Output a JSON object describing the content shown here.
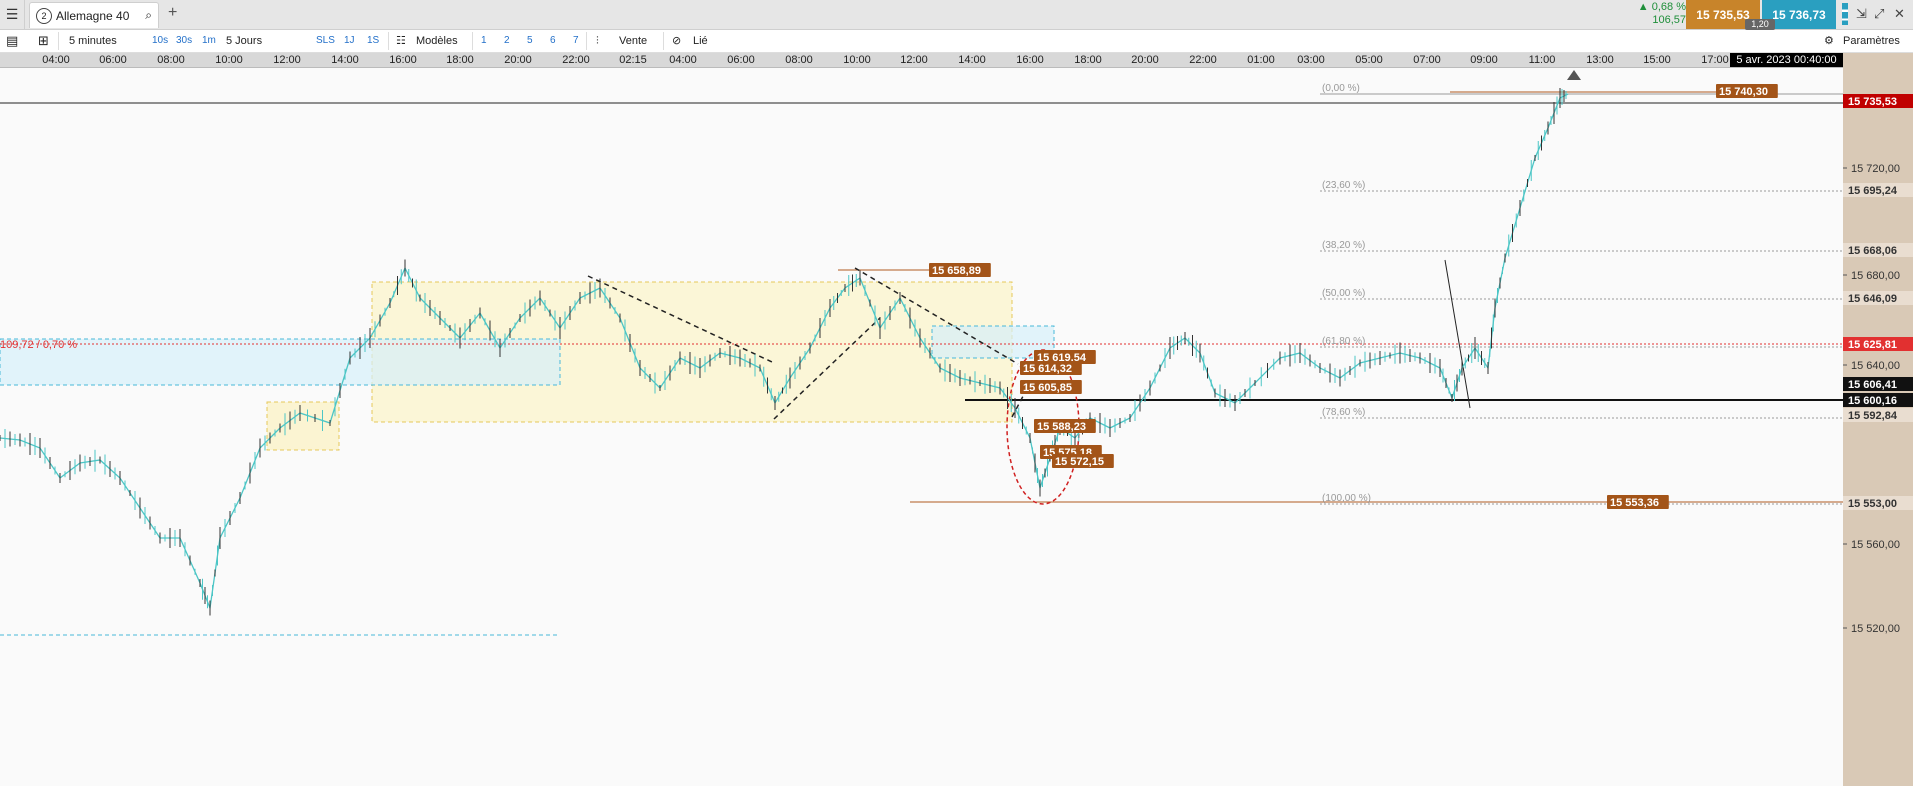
{
  "tabbar": {
    "menu_icon": "hamburger-icon",
    "tab_number": "2",
    "tab_title": "Allemagne 40",
    "plus": "+",
    "change_pct": "0,68 %",
    "change_abs": "106,57",
    "bid": "15 735,53",
    "ask": "15 736,73",
    "spread": "1,20",
    "controls": [
      "⇲",
      "⤢",
      "✕"
    ]
  },
  "toolbar": {
    "interval": "5 minutes",
    "btn_10s": "10s",
    "btn_30s": "30s",
    "btn_1m": "1m",
    "period": "5 Jours",
    "btn_sls": "SLS",
    "btn_1j": "1J",
    "btn_1s": "1S",
    "models": "Modèles",
    "n1": "1",
    "n2": "2",
    "n3": "5",
    "n4": "6",
    "n5": "7",
    "vente": "Vente",
    "lie": "Lié",
    "params": "Paramètres"
  },
  "time_axis": {
    "labels": [
      "04:00",
      "06:00",
      "08:00",
      "10:00",
      "12:00",
      "14:00",
      "16:00",
      "18:00",
      "20:00",
      "22:00",
      "02:15",
      "04:00",
      "06:00",
      "08:00",
      "10:00",
      "12:00",
      "14:00",
      "16:00",
      "18:00",
      "20:00",
      "22:00",
      "01:00",
      "03:00",
      "05:00",
      "07:00",
      "09:00",
      "11:00",
      "13:00",
      "15:00",
      "17:00"
    ],
    "current_date": "5 avr. 2023 00:40:00"
  },
  "price_axis": {
    "ticks": [
      "15 720,00",
      "15 680,00",
      "15 640,00",
      "15 560,00",
      "15 520,00"
    ],
    "price_labels": [
      {
        "text": "15 735,53",
        "color": "#c00000"
      },
      {
        "text": "15 695,24",
        "color": "#d9c9b6"
      },
      {
        "text": "15 668,06",
        "color": "#d9c9b6"
      },
      {
        "text": "15 646,09",
        "color": "#d9c9b6"
      },
      {
        "text": "15 625,81",
        "color": "#e23030"
      },
      {
        "text": "15 606,41",
        "color": "#111111"
      },
      {
        "text": "15 600,16",
        "color": "#111111"
      },
      {
        "text": "15 592,84",
        "color": "#d9c9b6"
      },
      {
        "text": "15 553,00",
        "color": "#d9c9b6"
      }
    ]
  },
  "fib_levels": [
    "(0,00 %)",
    "(23,60 %)",
    "(38,20 %)",
    "(50,00 %)",
    "(61,80 %)",
    "(78,60 %)",
    "(100,00 %)"
  ],
  "chart_labels": [
    "15 740,30",
    "15 658,89",
    "15 619,54",
    "15 614,32",
    "15 605,85",
    "15 588,23",
    "15 575,18",
    "15 572,15",
    "15 553,36",
    "109,72 / 0,70 %"
  ]
}
